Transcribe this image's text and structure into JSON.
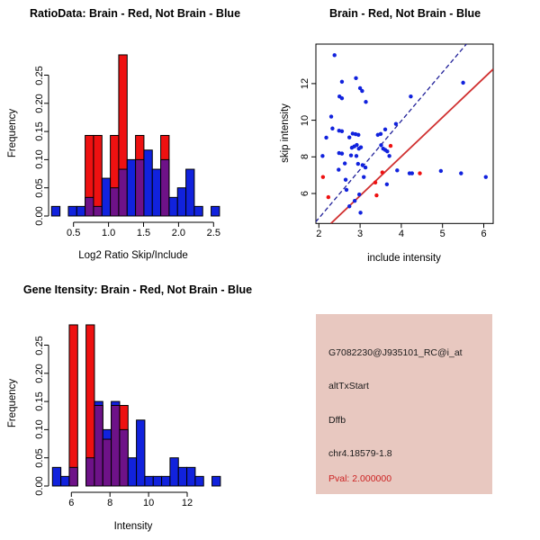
{
  "colors": {
    "hist_red": "#EE1111",
    "hist_blue": "#1122DD",
    "hist_purple": "#6E1288",
    "point_blue": "#1122DD",
    "point_red": "#EE1111",
    "line_blue": "#202099",
    "line_red": "#D03030",
    "axis": "#000000",
    "info_bg": "#E8C8C0",
    "pval_red": "#CC2222",
    "text": "#1A1A1A"
  },
  "panels": {
    "ratio_hist": {
      "title": "RatioData: Brain - Red, Not Brain - Blue",
      "xlabel": "Log2 Ratio Skip/Include",
      "ylabel": "Frequency",
      "x_ticks": [
        "0.5",
        "1.0",
        "1.5",
        "2.0",
        "2.5"
      ],
      "y_ticks": [
        "0.00",
        "0.05",
        "0.10",
        "0.15",
        "0.20",
        "0.25"
      ]
    },
    "scatter": {
      "title": "Brain - Red, Not Brain - Blue",
      "xlabel": "include intensity",
      "ylabel": "skip intensity",
      "x_ticks": [
        "2",
        "3",
        "4",
        "5",
        "6"
      ],
      "y_ticks": [
        "6",
        "8",
        "10",
        "12"
      ]
    },
    "gene_hist": {
      "title": "Gene Itensity: Brain - Red, Not Brain - Blue",
      "xlabel": "Intensity",
      "ylabel": "Frequency",
      "x_ticks": [
        "6",
        "8",
        "10",
        "12"
      ],
      "y_ticks": [
        "0.00",
        "0.05",
        "0.10",
        "0.15",
        "0.20",
        "0.25"
      ]
    },
    "info_box": {
      "probe_id": "G7082230@J935101_RC@i_at",
      "event_type": "altTxStart",
      "gene": "Dffb",
      "locus": "chr4.18579-1.8",
      "pval": "Pval: 2.000000"
    }
  },
  "chart_data": [
    {
      "id": "ratio_hist",
      "type": "bar",
      "subtype": "overlaid-histogram",
      "title": "RatioData: Brain - Red, Not Brain - Blue",
      "xlabel": "Log2 Ratio Skip/Include",
      "ylabel": "Frequency",
      "xlim": [
        0.2,
        2.55
      ],
      "ylim": [
        0,
        0.29
      ],
      "bin_start": 0.2,
      "bin_width": 0.1175,
      "series": [
        {
          "name": "Brain (red)",
          "values": [
            0,
            0,
            0,
            0,
            0.143,
            0.143,
            0,
            0.143,
            0.286,
            0,
            0.143,
            0,
            0,
            0.143,
            0,
            0,
            0,
            0,
            0,
            0
          ]
        },
        {
          "name": "Not Brain (blue)",
          "values": [
            0.017,
            0,
            0.017,
            0.017,
            0.033,
            0.017,
            0.067,
            0.05,
            0.083,
            0.1,
            0.1,
            0.117,
            0.083,
            0.1,
            0.033,
            0.05,
            0.083,
            0.017,
            0,
            0.017
          ]
        }
      ],
      "overlap_color_note": "overlap of red and blue drawn purple"
    },
    {
      "id": "scatter",
      "type": "scatter",
      "title": "Brain - Red, Not Brain - Blue",
      "xlabel": "include intensity",
      "ylabel": "skip intensity",
      "xlim": [
        1.92,
        6.23
      ],
      "ylim": [
        4.36,
        14.16
      ],
      "blue_points": [
        [
          2.38,
          13.55
        ],
        [
          2.56,
          12.1
        ],
        [
          2.9,
          12.3
        ],
        [
          3.0,
          11.75
        ],
        [
          3.05,
          11.6
        ],
        [
          3.14,
          11.0
        ],
        [
          2.5,
          11.3
        ],
        [
          2.56,
          11.2
        ],
        [
          2.3,
          10.2
        ],
        [
          4.23,
          11.3
        ],
        [
          5.5,
          12.05
        ],
        [
          2.18,
          9.05
        ],
        [
          2.33,
          9.55
        ],
        [
          2.49,
          9.43
        ],
        [
          2.56,
          9.4
        ],
        [
          2.74,
          9.06
        ],
        [
          2.82,
          9.27
        ],
        [
          2.89,
          9.24
        ],
        [
          2.96,
          9.2
        ],
        [
          3.43,
          9.2
        ],
        [
          3.5,
          9.25
        ],
        [
          3.61,
          9.5
        ],
        [
          3.87,
          9.8
        ],
        [
          2.8,
          8.5
        ],
        [
          2.86,
          8.57
        ],
        [
          2.92,
          8.65
        ],
        [
          2.97,
          8.45
        ],
        [
          3.02,
          8.52
        ],
        [
          3.51,
          8.64
        ],
        [
          3.56,
          8.45
        ],
        [
          3.61,
          8.38
        ],
        [
          3.66,
          8.3
        ],
        [
          2.09,
          8.05
        ],
        [
          2.49,
          8.21
        ],
        [
          2.56,
          8.18
        ],
        [
          2.78,
          8.08
        ],
        [
          2.91,
          8.05
        ],
        [
          3.71,
          8.05
        ],
        [
          2.63,
          7.64
        ],
        [
          2.95,
          7.62
        ],
        [
          3.06,
          7.55
        ],
        [
          3.13,
          7.42
        ],
        [
          2.48,
          7.3
        ],
        [
          3.9,
          7.26
        ],
        [
          4.2,
          7.1
        ],
        [
          4.26,
          7.1
        ],
        [
          4.96,
          7.23
        ],
        [
          5.45,
          7.1
        ],
        [
          6.05,
          6.9
        ],
        [
          2.65,
          6.75
        ],
        [
          2.67,
          6.2
        ],
        [
          2.74,
          5.3
        ],
        [
          2.87,
          5.6
        ],
        [
          2.98,
          5.95
        ],
        [
          3.01,
          4.95
        ],
        [
          3.09,
          6.9
        ],
        [
          3.65,
          6.5
        ]
      ],
      "red_points": [
        [
          2.1,
          6.9
        ],
        [
          2.23,
          5.8
        ],
        [
          3.37,
          6.6
        ],
        [
          3.4,
          5.9
        ],
        [
          3.54,
          7.15
        ],
        [
          3.74,
          8.6
        ],
        [
          4.45,
          7.1
        ]
      ],
      "blue_line": {
        "x1": 1.92,
        "y1": 4.44,
        "x2": 5.58,
        "y2": 14.16,
        "style": "dashed"
      },
      "red_line": {
        "x1": 2.29,
        "y1": 4.36,
        "x2": 6.23,
        "y2": 12.79,
        "style": "solid"
      }
    },
    {
      "id": "gene_hist",
      "type": "bar",
      "subtype": "overlaid-histogram",
      "title": "Gene Itensity: Brain - Red, Not Brain - Blue",
      "xlabel": "Intensity",
      "ylabel": "Frequency",
      "xlim": [
        5.0,
        13.5
      ],
      "ylim": [
        0,
        0.29
      ],
      "bin_start": 5.0,
      "bin_width": 0.435,
      "series": [
        {
          "name": "Brain (red)",
          "values": [
            0,
            0,
            0.286,
            0,
            0.286,
            0.143,
            0.083,
            0.143,
            0.143,
            0,
            0,
            0,
            0,
            0,
            0,
            0,
            0,
            0,
            0,
            0
          ]
        },
        {
          "name": "Not Brain (blue)",
          "values": [
            0.033,
            0.017,
            0.033,
            0,
            0.05,
            0.15,
            0.1,
            0.15,
            0.1,
            0.05,
            0.117,
            0.017,
            0.017,
            0.017,
            0.05,
            0.033,
            0.033,
            0.017,
            0,
            0.017
          ]
        }
      ],
      "overlap_color_note": "overlap of red and blue drawn purple"
    }
  ]
}
